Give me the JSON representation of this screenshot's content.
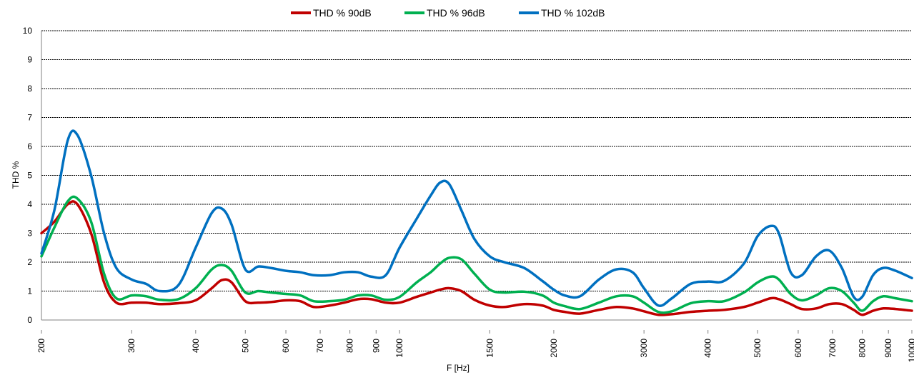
{
  "chart_data": {
    "type": "line",
    "title": "",
    "xlabel": "F [Hz]",
    "ylabel": "THD  %",
    "x_scale": "log",
    "xlim": [
      200,
      10000
    ],
    "ylim": [
      0,
      10
    ],
    "y_ticks": [
      "0",
      "1",
      "2",
      "3",
      "4",
      "5",
      "6",
      "7",
      "8",
      "9",
      "10"
    ],
    "x_tick_labels": [
      {
        "value": 200,
        "label": "200"
      },
      {
        "value": 300,
        "label": "300"
      },
      {
        "value": 400,
        "label": "400"
      },
      {
        "value": 500,
        "label": "500"
      },
      {
        "value": 600,
        "label": "600"
      },
      {
        "value": 700,
        "label": "700"
      },
      {
        "value": 800,
        "label": "800"
      },
      {
        "value": 900,
        "label": "900"
      },
      {
        "value": 1000,
        "label": "1000"
      },
      {
        "value": 1500,
        "label": "1500"
      },
      {
        "value": 2000,
        "label": "2000"
      },
      {
        "value": 3000,
        "label": "3000"
      },
      {
        "value": 4000,
        "label": "4000"
      },
      {
        "value": 5000,
        "label": "5000"
      },
      {
        "value": 6000,
        "label": "6000"
      },
      {
        "value": 7000,
        "label": "7000"
      },
      {
        "value": 8000,
        "label": "8000"
      },
      {
        "value": 9000,
        "label": "9000"
      },
      {
        "value": 10000,
        "label": "10000"
      }
    ],
    "grid": "horizontal",
    "legend_position": "top-center",
    "series": [
      {
        "name": "THD % 90dB",
        "color": "#c00000",
        "x": [
          200,
          212,
          225,
          235,
          250,
          265,
          280,
          300,
          320,
          340,
          370,
          400,
          430,
          450,
          470,
          500,
          530,
          560,
          600,
          640,
          680,
          730,
          780,
          830,
          880,
          940,
          1000,
          1080,
          1150,
          1200,
          1250,
          1320,
          1400,
          1500,
          1600,
          1750,
          1900,
          2000,
          2100,
          2250,
          2450,
          2650,
          2850,
          3000,
          3200,
          3400,
          3700,
          4000,
          4300,
          4700,
          5000,
          5300,
          5500,
          5800,
          6100,
          6500,
          6900,
          7300,
          7700,
          8000,
          8400,
          8800,
          9300,
          10000
        ],
        "y": [
          3.0,
          3.4,
          4.0,
          4.0,
          3.0,
          1.3,
          0.6,
          0.6,
          0.6,
          0.55,
          0.58,
          0.68,
          1.1,
          1.38,
          1.3,
          0.65,
          0.6,
          0.62,
          0.68,
          0.65,
          0.45,
          0.5,
          0.6,
          0.72,
          0.72,
          0.6,
          0.6,
          0.8,
          0.95,
          1.05,
          1.1,
          1.0,
          0.7,
          0.5,
          0.45,
          0.55,
          0.5,
          0.35,
          0.28,
          0.22,
          0.35,
          0.45,
          0.4,
          0.3,
          0.18,
          0.2,
          0.28,
          0.32,
          0.35,
          0.45,
          0.6,
          0.75,
          0.72,
          0.55,
          0.38,
          0.4,
          0.55,
          0.55,
          0.35,
          0.18,
          0.32,
          0.4,
          0.38,
          0.32
        ]
      },
      {
        "name": "THD % 96dB",
        "color": "#00b050",
        "x": [
          200,
          212,
          225,
          235,
          250,
          265,
          280,
          300,
          320,
          340,
          370,
          400,
          430,
          450,
          470,
          500,
          530,
          560,
          600,
          640,
          680,
          730,
          780,
          830,
          880,
          940,
          1000,
          1080,
          1150,
          1200,
          1250,
          1320,
          1400,
          1500,
          1600,
          1750,
          1900,
          2000,
          2100,
          2250,
          2450,
          2650,
          2850,
          3000,
          3200,
          3400,
          3700,
          4000,
          4300,
          4700,
          5000,
          5300,
          5500,
          5800,
          6100,
          6500,
          6900,
          7300,
          7700,
          8000,
          8400,
          8800,
          9300,
          10000
        ],
        "y": [
          2.2,
          3.2,
          4.1,
          4.2,
          3.4,
          1.6,
          0.75,
          0.85,
          0.82,
          0.7,
          0.72,
          1.1,
          1.75,
          1.9,
          1.7,
          0.95,
          1.0,
          0.95,
          0.9,
          0.85,
          0.65,
          0.65,
          0.7,
          0.85,
          0.85,
          0.7,
          0.8,
          1.3,
          1.65,
          1.95,
          2.15,
          2.1,
          1.6,
          1.05,
          0.95,
          0.98,
          0.85,
          0.6,
          0.48,
          0.38,
          0.6,
          0.82,
          0.82,
          0.6,
          0.28,
          0.3,
          0.58,
          0.65,
          0.65,
          0.95,
          1.3,
          1.5,
          1.4,
          0.9,
          0.68,
          0.85,
          1.1,
          1.0,
          0.6,
          0.32,
          0.65,
          0.82,
          0.75,
          0.65
        ]
      },
      {
        "name": "THD % 102dB",
        "color": "#0070c0",
        "x": [
          200,
          212,
          225,
          235,
          250,
          265,
          280,
          300,
          320,
          340,
          370,
          400,
          430,
          450,
          470,
          500,
          530,
          560,
          600,
          640,
          680,
          730,
          780,
          830,
          880,
          940,
          1000,
          1080,
          1150,
          1200,
          1250,
          1320,
          1400,
          1500,
          1600,
          1750,
          1900,
          2000,
          2100,
          2250,
          2450,
          2650,
          2850,
          3000,
          3200,
          3400,
          3700,
          4000,
          4300,
          4700,
          5000,
          5300,
          5500,
          5800,
          6100,
          6500,
          6900,
          7300,
          7700,
          8000,
          8400,
          8800,
          9300,
          10000
        ],
        "y": [
          2.3,
          3.8,
          6.2,
          6.4,
          5.0,
          3.0,
          1.8,
          1.4,
          1.25,
          1.0,
          1.2,
          2.5,
          3.7,
          3.85,
          3.3,
          1.75,
          1.85,
          1.8,
          1.7,
          1.65,
          1.55,
          1.55,
          1.65,
          1.65,
          1.5,
          1.55,
          2.5,
          3.5,
          4.3,
          4.75,
          4.7,
          3.8,
          2.8,
          2.2,
          2.0,
          1.8,
          1.35,
          1.05,
          0.85,
          0.82,
          1.4,
          1.75,
          1.65,
          1.1,
          0.5,
          0.75,
          1.25,
          1.33,
          1.35,
          1.95,
          2.9,
          3.25,
          3.0,
          1.65,
          1.55,
          2.2,
          2.4,
          1.8,
          0.8,
          0.8,
          1.55,
          1.8,
          1.7,
          1.45
        ]
      }
    ]
  }
}
